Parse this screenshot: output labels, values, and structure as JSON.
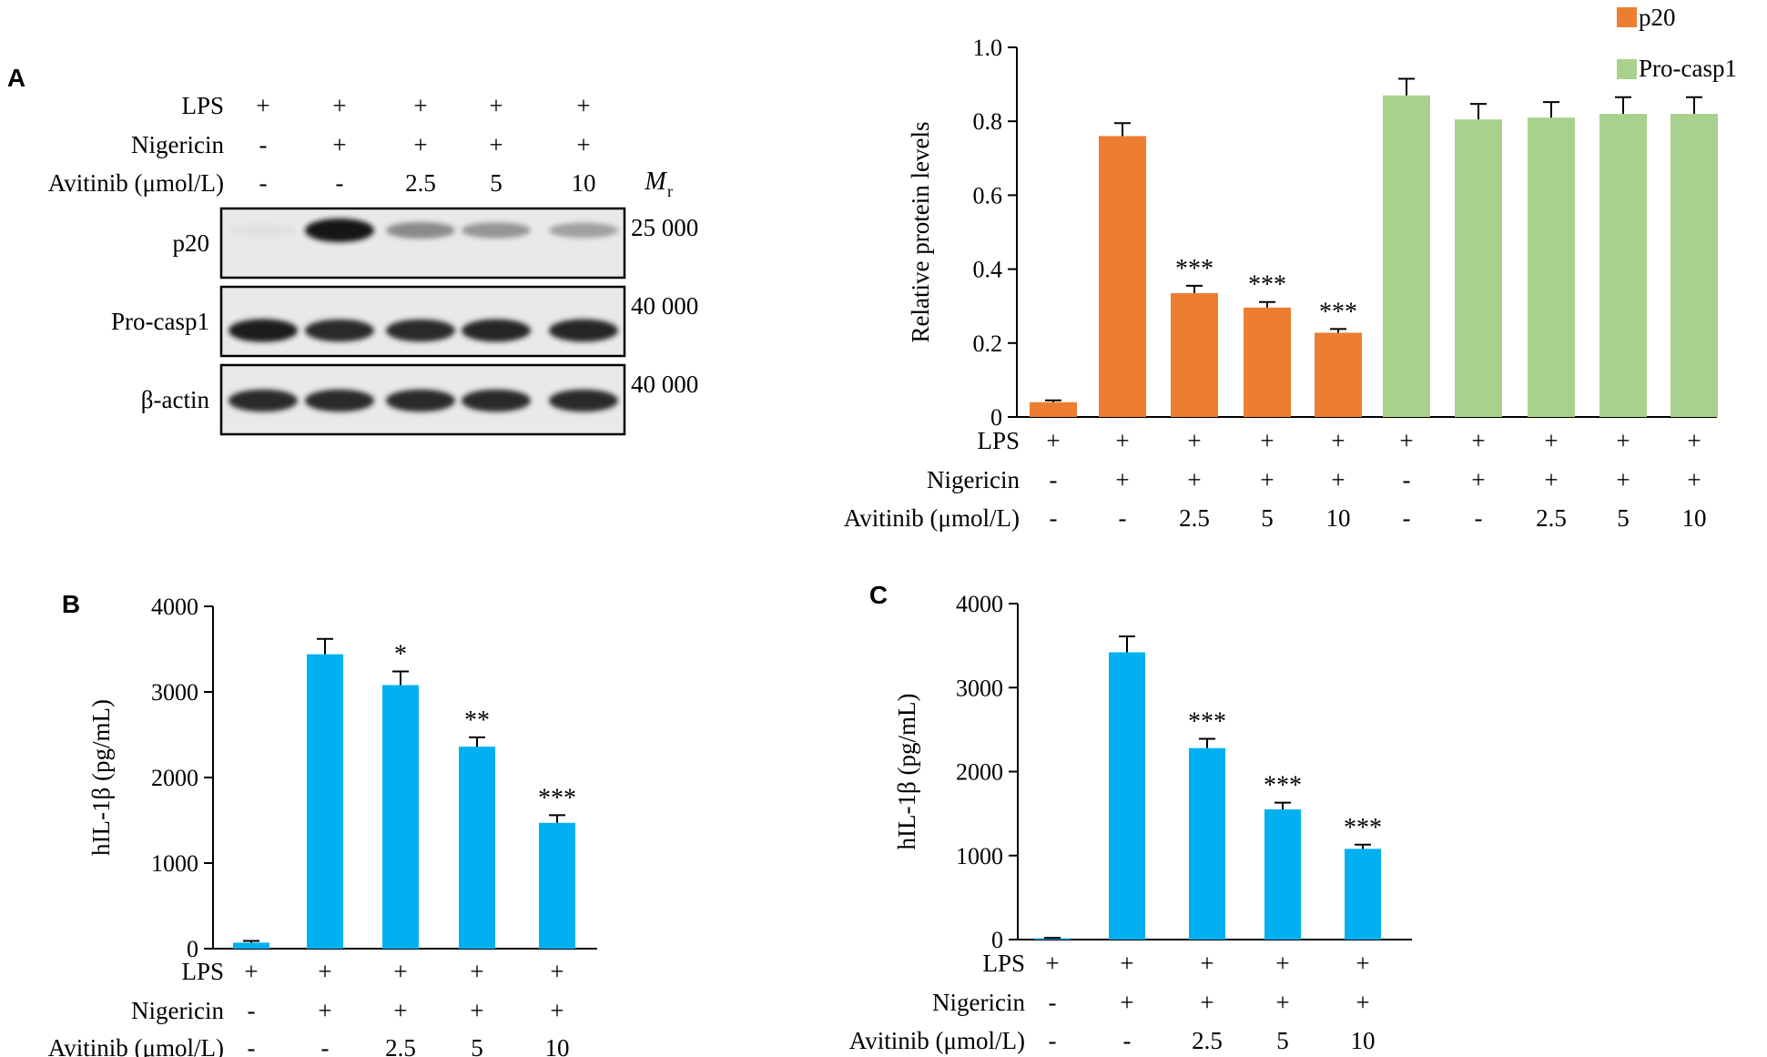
{
  "panels": {
    "A": "A",
    "B": "B",
    "C": "C"
  },
  "colors": {
    "p20": "#ed7d31",
    "pro_casp1": "#a9d18e",
    "hil1b": "#00b0f0",
    "axis": "#000000"
  },
  "treatments": {
    "row_labels": [
      "LPS",
      "Nigericin",
      "Avitinib (μmol/L)"
    ],
    "five_lanes": [
      [
        "+",
        "+",
        "+",
        "+",
        "+"
      ],
      [
        "-",
        "+",
        "+",
        "+",
        "+"
      ],
      [
        "-",
        "-",
        "2.5",
        "5",
        "10"
      ]
    ],
    "ten_lanes": [
      [
        "+",
        "+",
        "+",
        "+",
        "+",
        "+",
        "+",
        "+",
        "+",
        "+"
      ],
      [
        "-",
        "+",
        "+",
        "+",
        "+",
        "-",
        "+",
        "+",
        "+",
        "+"
      ],
      [
        "-",
        "-",
        "2.5",
        "5",
        "10",
        "-",
        "-",
        "2.5",
        "5",
        "10"
      ]
    ]
  },
  "blot": {
    "mr_label": "M",
    "mr_sub": "r",
    "rows": [
      {
        "label": "p20",
        "mr": "25 000",
        "band_intensity": [
          0.05,
          1.0,
          0.45,
          0.4,
          0.35
        ]
      },
      {
        "label": "Pro-casp1",
        "mr": "40 000",
        "band_intensity": [
          0.95,
          0.9,
          0.9,
          0.92,
          0.92
        ]
      },
      {
        "label": "β-actin",
        "mr": "40 000",
        "band_intensity": [
          0.9,
          0.9,
          0.9,
          0.9,
          0.9
        ]
      }
    ]
  },
  "chart_data": [
    {
      "id": "A",
      "type": "bar",
      "ylabel": "Relative protein levels",
      "ylim": [
        0,
        1.0
      ],
      "yticks": [
        "0",
        "0.2",
        "0.4",
        "0.6",
        "0.8",
        "1.0"
      ],
      "legend_position": "top-right",
      "series": [
        {
          "name": "p20",
          "values": [
            0.04,
            0.76,
            0.335,
            0.296,
            0.228
          ],
          "errors": [
            0.005,
            0.035,
            0.02,
            0.015,
            0.01
          ],
          "significance": [
            "",
            "",
            "***",
            "***",
            "***"
          ]
        },
        {
          "name": "Pro-casp1",
          "values": [
            0.87,
            0.805,
            0.81,
            0.82,
            0.82
          ],
          "errors": [
            0.045,
            0.042,
            0.042,
            0.045,
            0.045
          ],
          "significance": [
            "",
            "",
            "",
            "",
            ""
          ]
        }
      ]
    },
    {
      "id": "B",
      "type": "bar",
      "ylabel": "hIL-1β (pg/mL)",
      "ylim": [
        0,
        4000
      ],
      "yticks": [
        "0",
        "1000",
        "2000",
        "3000",
        "4000"
      ],
      "values": [
        70,
        3440,
        3080,
        2360,
        1470
      ],
      "errors": [
        20,
        180,
        160,
        110,
        90
      ],
      "significance": [
        "",
        "",
        "*",
        "**",
        "***"
      ]
    },
    {
      "id": "C",
      "type": "bar",
      "ylabel": "hIL-1β (pg/mL)",
      "ylim": [
        0,
        4000
      ],
      "yticks": [
        "0",
        "1000",
        "2000",
        "3000",
        "4000"
      ],
      "values": [
        15,
        3420,
        2280,
        1550,
        1080
      ],
      "errors": [
        5,
        190,
        110,
        80,
        50
      ],
      "significance": [
        "",
        "",
        "***",
        "***",
        "***"
      ]
    }
  ]
}
